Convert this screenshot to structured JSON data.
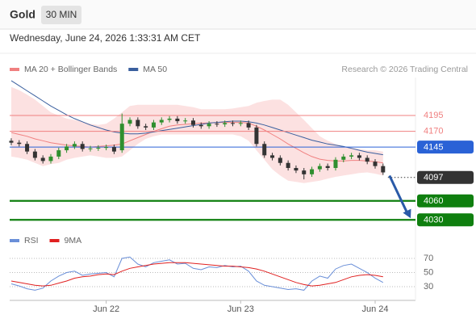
{
  "header": {
    "instrument": "Gold",
    "interval": "30 MIN",
    "timestamp": "Wednesday, June 24, 2026 1:33:31 AM CET",
    "copyright": "Research © 2026 Trading Central"
  },
  "chart_data": [
    {
      "type": "candlestick",
      "xlim": [
        -0.2,
        51.1
      ],
      "ylim": [
        4015,
        4255
      ],
      "open": [
        4155,
        4152,
        4150,
        4138,
        4128,
        4123,
        4130,
        4140,
        4146,
        4150,
        4142,
        4143,
        4144,
        4145,
        4140,
        4182,
        4188,
        4178,
        4176,
        4184,
        4188,
        4190,
        4186,
        4187,
        4180,
        4178,
        4182,
        4181,
        4183,
        4182,
        4183,
        4176,
        4150,
        4132,
        4128,
        4120,
        4112,
        4108,
        4102,
        4110,
        4115,
        4112,
        4125,
        4130,
        4132,
        4128,
        4122,
        4115
      ],
      "high": [
        4159,
        4156,
        4154,
        4142,
        4132,
        4134,
        4144,
        4150,
        4154,
        4154,
        4147,
        4148,
        4149,
        4149,
        4198,
        4192,
        4192,
        4182,
        4188,
        4192,
        4194,
        4194,
        4191,
        4191,
        4184,
        4186,
        4186,
        4187,
        4187,
        4187,
        4187,
        4180,
        4154,
        4136,
        4132,
        4124,
        4116,
        4112,
        4114,
        4119,
        4119,
        4129,
        4134,
        4136,
        4136,
        4132,
        4126,
        4119
      ],
      "low": [
        4148,
        4146,
        4134,
        4124,
        4119,
        4119,
        4126,
        4136,
        4142,
        4138,
        4138,
        4139,
        4140,
        4134,
        4136,
        4178,
        4174,
        4172,
        4172,
        4180,
        4184,
        4182,
        4182,
        4176,
        4174,
        4174,
        4177,
        4177,
        4178,
        4178,
        4172,
        4146,
        4128,
        4124,
        4116,
        4108,
        4104,
        4094,
        4098,
        4106,
        4108,
        4108,
        4121,
        4126,
        4124,
        4118,
        4111,
        4101
      ],
      "close": [
        4152,
        4150,
        4138,
        4128,
        4123,
        4130,
        4140,
        4146,
        4150,
        4142,
        4143,
        4144,
        4145,
        4138,
        4182,
        4188,
        4178,
        4176,
        4184,
        4188,
        4190,
        4186,
        4187,
        4180,
        4178,
        4182,
        4181,
        4183,
        4182,
        4183,
        4176,
        4150,
        4132,
        4128,
        4120,
        4112,
        4108,
        4102,
        4110,
        4115,
        4112,
        4125,
        4130,
        4132,
        4128,
        4122,
        4115,
        4105
      ],
      "color_up": "#2f8f2f",
      "color_down": "#333333",
      "series": [
        {
          "name": "MA 20 + Bollinger Bands",
          "color": "#f08080",
          "band_color": "#fcdcdc",
          "values": [
            4168,
            4165,
            4162,
            4158,
            4155,
            4152,
            4150,
            4148,
            4147,
            4146,
            4145,
            4146,
            4147,
            4148,
            4150,
            4155,
            4160,
            4165,
            4170,
            4174,
            4178,
            4180,
            4181,
            4182,
            4183,
            4183,
            4184,
            4184,
            4184,
            4184,
            4183,
            4178,
            4172,
            4165,
            4158,
            4150,
            4143,
            4136,
            4130,
            4126,
            4124,
            4123,
            4123,
            4124,
            4124,
            4123,
            4122,
            4120
          ],
          "upper": [
            4240,
            4235,
            4228,
            4220,
            4210,
            4200,
            4195,
            4190,
            4188,
            4185,
            4182,
            4180,
            4182,
            4190,
            4200,
            4210,
            4212,
            4212,
            4212,
            4212,
            4212,
            4212,
            4210,
            4208,
            4205,
            4205,
            4205,
            4205,
            4206,
            4208,
            4210,
            4215,
            4218,
            4220,
            4220,
            4212,
            4200,
            4188,
            4175,
            4162,
            4155,
            4150,
            4146,
            4144,
            4142,
            4140,
            4140,
            4138
          ],
          "lower": [
            4130,
            4128,
            4125,
            4120,
            4115,
            4118,
            4120,
            4125,
            4128,
            4130,
            4132,
            4130,
            4128,
            4128,
            4130,
            4140,
            4150,
            4158,
            4162,
            4165,
            4165,
            4165,
            4165,
            4165,
            4165,
            4165,
            4165,
            4165,
            4165,
            4162,
            4155,
            4140,
            4125,
            4110,
            4100,
            4092,
            4090,
            4088,
            4090,
            4092,
            4095,
            4098,
            4100,
            4102,
            4104,
            4105,
            4103,
            4100
          ]
        },
        {
          "name": "MA 50",
          "color": "#3a5f9e",
          "values": [
            4250,
            4242,
            4234,
            4226,
            4218,
            4210,
            4203,
            4196,
            4190,
            4185,
            4180,
            4176,
            4172,
            4169,
            4167,
            4166,
            4166,
            4167,
            4169,
            4171,
            4173,
            4175,
            4177,
            4179,
            4181,
            4183,
            4184,
            4185,
            4186,
            4186,
            4185,
            4183,
            4180,
            4176,
            4172,
            4168,
            4164,
            4160,
            4156,
            4153,
            4150,
            4148,
            4146,
            4143,
            4140,
            4137,
            4135,
            4133
          ]
        }
      ],
      "levels": [
        {
          "value": 4195,
          "color": "#f08080",
          "style": "solid",
          "box": false
        },
        {
          "value": 4170,
          "color": "#f08080",
          "style": "solid",
          "box": false
        },
        {
          "value": 4145,
          "color": "#2a62d6",
          "style": "solid",
          "box": true
        },
        {
          "value": 4097,
          "color": "#333333",
          "style": "dotted",
          "box": true
        },
        {
          "value": 4060,
          "color": "#0f7f0f",
          "style": "thick",
          "box": true
        },
        {
          "value": 4030,
          "color": "#0f7f0f",
          "style": "thick",
          "box": true
        }
      ],
      "arrow_color": "#2a5aa8"
    },
    {
      "type": "line",
      "xlim": [
        -0.2,
        51.1
      ],
      "ylim": [
        20,
        80
      ],
      "yticks": [
        70,
        50,
        30
      ],
      "xticks": [
        {
          "value": 12,
          "label": "Jun 22"
        },
        {
          "value": 29,
          "label": "Jun 23"
        },
        {
          "value": 46,
          "label": "Jun 24"
        }
      ],
      "series": [
        {
          "name": "RSI",
          "color": "#6a8fd8",
          "values": [
            34,
            31,
            27,
            25,
            28,
            38,
            45,
            50,
            52,
            46,
            48,
            49,
            50,
            44,
            70,
            72,
            62,
            58,
            64,
            66,
            68,
            62,
            63,
            56,
            54,
            58,
            57,
            60,
            58,
            59,
            52,
            38,
            32,
            30,
            28,
            26,
            27,
            25,
            38,
            45,
            42,
            55,
            60,
            62,
            56,
            50,
            42,
            36
          ]
        },
        {
          "name": "9MA",
          "color": "#e02020",
          "values": [
            38,
            36,
            34,
            32,
            31,
            32,
            35,
            38,
            42,
            44,
            45,
            47,
            48,
            47,
            52,
            56,
            58,
            60,
            62,
            63,
            64,
            64,
            64,
            63,
            62,
            61,
            60,
            59,
            59,
            58,
            57,
            55,
            52,
            48,
            44,
            40,
            36,
            33,
            31,
            32,
            34,
            36,
            40,
            44,
            46,
            47,
            46,
            44
          ]
        }
      ]
    }
  ]
}
